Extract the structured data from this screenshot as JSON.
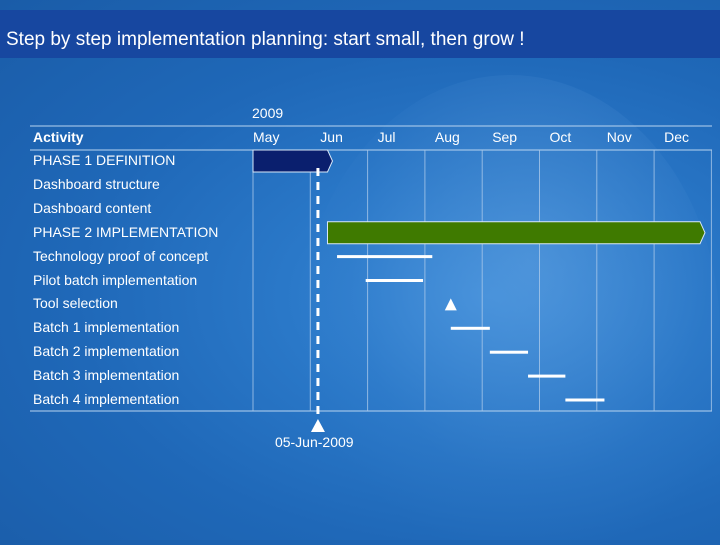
{
  "title": "Step by step implementation planning: start small, then grow !",
  "chart_data": {
    "type": "gantt",
    "year": "2009",
    "activity_header": "Activity",
    "months": [
      "May",
      "Jun",
      "Jul",
      "Aug",
      "Sep",
      "Oct",
      "Nov",
      "Dec"
    ],
    "tasks": [
      {
        "name": "PHASE 1 DEFINITION",
        "kind": "phase",
        "start": "2009-05-01",
        "end": "2009-06-10",
        "color": "#0a1f6e"
      },
      {
        "name": "Dashboard structure",
        "kind": "none"
      },
      {
        "name": "Dashboard content",
        "kind": "none"
      },
      {
        "name": "PHASE 2 IMPLEMENTATION",
        "kind": "phase",
        "start": "2009-06-10",
        "end": "2009-12-31",
        "color": "#3f7a00"
      },
      {
        "name": "Technology proof of concept",
        "kind": "task",
        "start": "2009-06-15",
        "end": "2009-08-05"
      },
      {
        "name": "Pilot batch implementation",
        "kind": "task",
        "start": "2009-06-30",
        "end": "2009-07-31"
      },
      {
        "name": "Tool selection",
        "kind": "milestone",
        "date": "2009-08-15"
      },
      {
        "name": "Batch 1 implementation",
        "kind": "task",
        "start": "2009-08-15",
        "end": "2009-09-05"
      },
      {
        "name": "Batch 2 implementation",
        "kind": "task",
        "start": "2009-09-05",
        "end": "2009-09-25"
      },
      {
        "name": "Batch 3 implementation",
        "kind": "task",
        "start": "2009-09-25",
        "end": "2009-10-15"
      },
      {
        "name": "Batch 4 implementation",
        "kind": "task",
        "start": "2009-10-15",
        "end": "2009-11-05"
      }
    ],
    "today_marker": {
      "date": "2009-06-05",
      "label": "05-Jun-2009"
    }
  }
}
